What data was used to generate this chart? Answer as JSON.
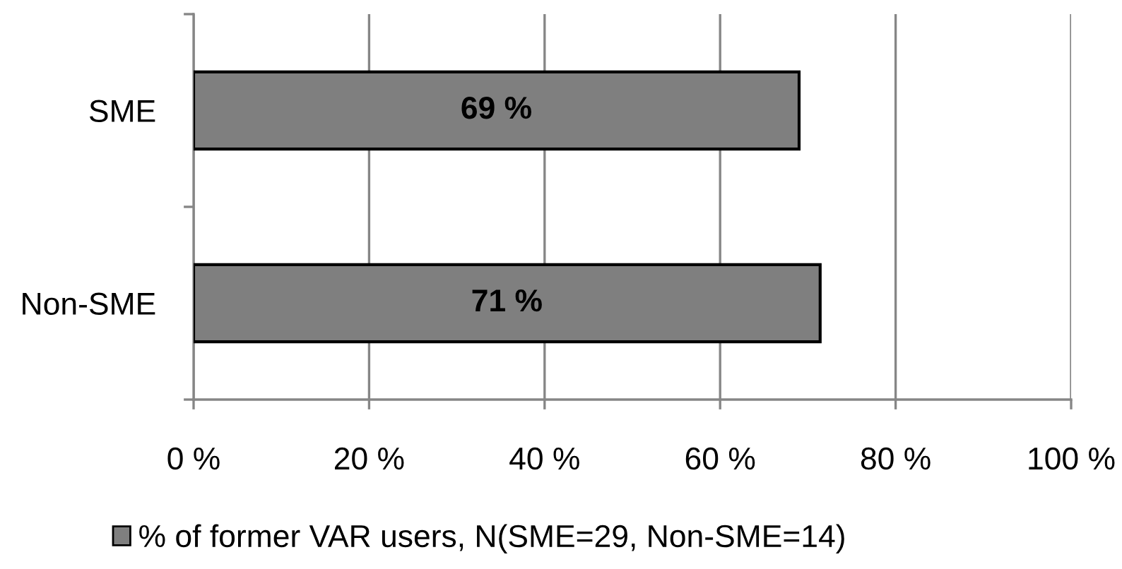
{
  "chart_data": {
    "type": "bar",
    "orientation": "horizontal",
    "categories": [
      "SME",
      "Non-SME"
    ],
    "series": [
      {
        "name": "% of former VAR users, N(SME=29, Non-SME=14)",
        "color": "#7f7f7f",
        "values": [
          69,
          71.4
        ],
        "value_labels": [
          "69 %",
          "71 %"
        ]
      }
    ],
    "xlim": [
      0,
      100
    ],
    "xticks": [
      {
        "value": 0,
        "label": "0 %"
      },
      {
        "value": 20,
        "label": "20 %"
      },
      {
        "value": 40,
        "label": "40 %"
      },
      {
        "value": 60,
        "label": "60 %"
      },
      {
        "value": 80,
        "label": "80 %"
      },
      {
        "value": 100,
        "label": "100 %"
      }
    ],
    "grid": "x",
    "legend": "bottom"
  }
}
